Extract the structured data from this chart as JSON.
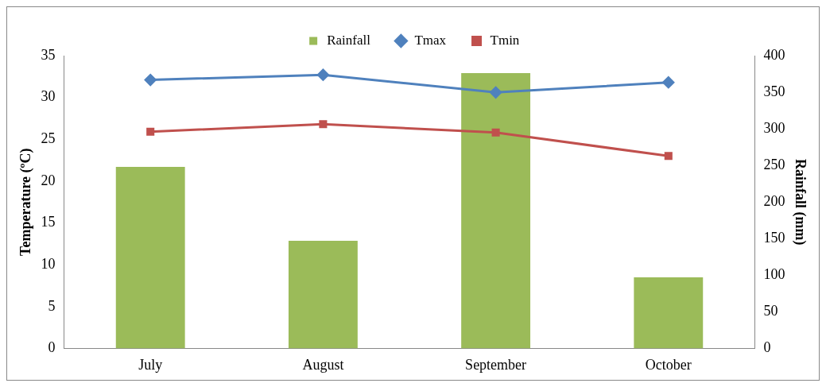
{
  "chart_data": {
    "type": "bar",
    "categories": [
      "July",
      "August",
      "September",
      "October"
    ],
    "series": [
      {
        "name": "Rainfall",
        "axis": "y2",
        "color": "#9bbb59",
        "values": [
          248,
          147,
          376,
          97
        ]
      },
      {
        "name": "Tmax",
        "type": "line",
        "color": "#4f81bd",
        "marker": "diamond",
        "values": [
          32.1,
          32.7,
          30.6,
          31.8
        ]
      },
      {
        "name": "Tmin",
        "type": "line",
        "color": "#c0504d",
        "marker": "square",
        "values": [
          25.9,
          26.8,
          25.8,
          23.0
        ]
      }
    ],
    "ylabel": "Temperature (ºC)",
    "y2label": "Rainfall (mm)",
    "ylim": [
      0,
      35
    ],
    "yticks": [
      0,
      5,
      10,
      15,
      20,
      25,
      30,
      35
    ],
    "y2lim": [
      0,
      400
    ],
    "y2ticks": [
      0,
      50,
      100,
      150,
      200,
      250,
      300,
      350,
      400
    ],
    "grid": false,
    "legend": "top"
  }
}
